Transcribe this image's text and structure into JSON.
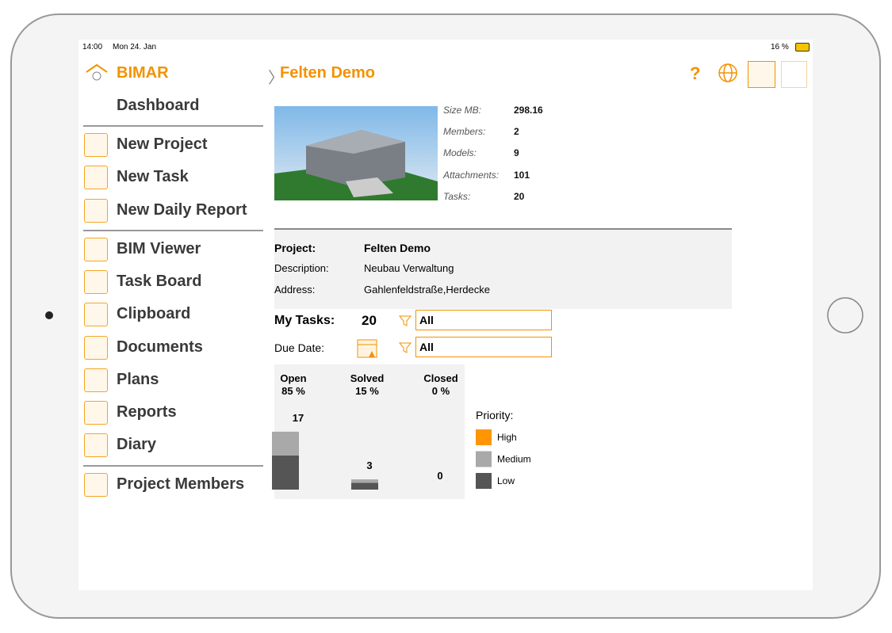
{
  "status": {
    "time": "14:00",
    "date": "Mon 24. Jan",
    "battery": "16 %"
  },
  "sidebar": {
    "app_name": "BIMAR",
    "groups": [
      [
        "Dashboard"
      ],
      [
        "New Project",
        "New Task",
        "New Daily Report"
      ],
      [
        "BIM Viewer",
        "Task Board",
        "Clipboard",
        "Documents",
        "Plans",
        "Reports",
        "Diary"
      ],
      [
        "Project Members"
      ]
    ]
  },
  "header": {
    "breadcrumb": "Felten Demo",
    "help": "?"
  },
  "stats": [
    {
      "label": "Size MB:",
      "value": "298.16"
    },
    {
      "label": "Members:",
      "value": "2"
    },
    {
      "label": "Models:",
      "value": "9"
    },
    {
      "label": "Attachments:",
      "value": "101"
    },
    {
      "label": "Tasks:",
      "value": "20"
    }
  ],
  "project_info": [
    {
      "label": "Project:",
      "value": "Felten Demo"
    },
    {
      "label": "Description:",
      "value": "Neubau Verwaltung"
    },
    {
      "label": "Address:",
      "value": "Gahlenfeldstraße,Herdecke"
    }
  ],
  "my_tasks": {
    "label": "My Tasks:",
    "count": "20",
    "filter": "All"
  },
  "due_date": {
    "label": "Due Date:",
    "filter": "All"
  },
  "task_chart": {
    "categories": [
      "Open",
      "Solved",
      "Closed"
    ],
    "percent_labels": [
      "85 %",
      "15 %",
      "0 %"
    ],
    "totals": [
      17,
      3,
      0
    ],
    "legend_title": "Priority:",
    "series": [
      {
        "name": "High",
        "color": "#ff9500",
        "values": [
          0,
          0,
          0
        ]
      },
      {
        "name": "Medium",
        "color": "#a9a9a9",
        "values": [
          7,
          1,
          0
        ]
      },
      {
        "name": "Low",
        "color": "#555555",
        "values": [
          10,
          2,
          0
        ]
      }
    ]
  }
}
